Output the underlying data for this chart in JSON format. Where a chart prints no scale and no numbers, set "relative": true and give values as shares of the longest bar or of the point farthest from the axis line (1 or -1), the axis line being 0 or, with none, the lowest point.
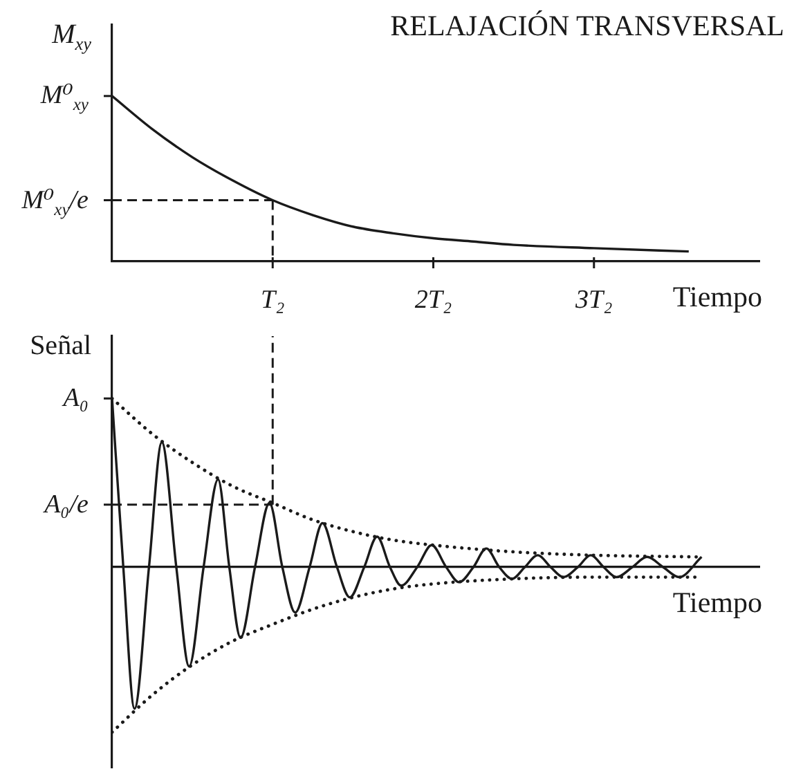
{
  "chart_data": [
    {
      "type": "line",
      "title": "RELAJACIÓN TRANSVERSAL",
      "xlabel": "Tiempo",
      "ylabel": "M$_{xy}$",
      "relative": true,
      "xlim": [
        0,
        4.03
      ],
      "xticks": [
        {
          "value": 1,
          "label": "T₂"
        },
        {
          "value": 2,
          "label": "2T₂"
        },
        {
          "value": 3,
          "label": "3T₂"
        }
      ],
      "annotations": [
        {
          "text": "M⁰$_{xy}$",
          "x": 0,
          "y": 1
        }
      ],
      "ref_lines": [
        {
          "axis": "x",
          "value": 1,
          "line_style": "dashed"
        },
        {
          "axis": "y",
          "value": 0.37,
          "label": "M⁰$_{xy}$/e",
          "line_style": "dashed"
        }
      ],
      "series": [
        {
          "color": "#1a1a1a",
          "x": [
            0,
            0.25,
            0.5,
            0.75,
            1,
            1.25,
            1.5,
            1.75,
            2,
            2.25,
            2.5,
            3,
            3.59
          ],
          "values": [
            1,
            0.8,
            0.63,
            0.49,
            0.37,
            0.28,
            0.21,
            0.17,
            0.14,
            0.12,
            0.1,
            0.08,
            0.06
          ]
        }
      ]
    },
    {
      "type": "line",
      "xlabel": "Tiempo",
      "ylabel": "Señal",
      "relative": true,
      "xlim": [
        0,
        4.03
      ],
      "annotations": [
        {
          "text": "A₀",
          "x": 0,
          "y": 1
        }
      ],
      "ref_lines": [
        {
          "axis": "x",
          "value": 1,
          "line_style": "dashed"
        },
        {
          "axis": "y",
          "value": 0.37,
          "label": "A₀/e",
          "line_style": "dashed"
        }
      ],
      "series": [
        {
          "color": "#1a1a1a",
          "x": [
            0,
            0.07,
            0.14,
            0.23,
            0.31,
            0.4,
            0.48,
            0.57,
            0.66,
            0.73,
            0.8,
            0.89,
            0.98,
            1.06,
            1.14,
            1.23,
            1.31,
            1.4,
            1.48,
            1.57,
            1.65,
            1.73,
            1.8,
            1.9,
            1.99,
            2.08,
            2.16,
            2.25,
            2.33,
            2.41,
            2.49,
            2.57,
            2.65,
            2.73,
            2.81,
            2.9,
            2.98,
            3.06,
            3.14,
            3.24,
            3.33,
            3.43,
            3.53,
            3.67
          ],
          "values": [
            1,
            0,
            -0.84,
            0,
            0.74,
            0,
            -0.59,
            0,
            0.52,
            0,
            -0.42,
            0,
            0.38,
            0,
            -0.27,
            0,
            0.26,
            0,
            -0.18,
            0,
            0.18,
            0,
            -0.11,
            0,
            0.13,
            0,
            -0.09,
            0,
            0.11,
            0,
            -0.07,
            0,
            0.07,
            0,
            -0.06,
            0,
            0.07,
            0,
            -0.06,
            0,
            0.06,
            0,
            -0.06,
            0.06
          ]
        },
        {
          "color": "#1a1a1a",
          "line_style": "dotted",
          "x": [
            0,
            0.25,
            0.5,
            0.75,
            1,
            1.25,
            1.5,
            1.75,
            2,
            2.5,
            3,
            3.64
          ],
          "values": [
            1,
            0.79,
            0.62,
            0.48,
            0.38,
            0.28,
            0.21,
            0.16,
            0.13,
            0.09,
            0.07,
            0.06
          ]
        },
        {
          "color": "#1a1a1a",
          "line_style": "dotted",
          "x": [
            0,
            0.25,
            0.5,
            0.75,
            1,
            1.25,
            1.5,
            1.75,
            2,
            2.5,
            3,
            3.64
          ],
          "values": [
            -0.98,
            -0.76,
            -0.58,
            -0.44,
            -0.34,
            -0.25,
            -0.18,
            -0.13,
            -0.1,
            -0.07,
            -0.06,
            -0.06
          ]
        }
      ]
    }
  ]
}
